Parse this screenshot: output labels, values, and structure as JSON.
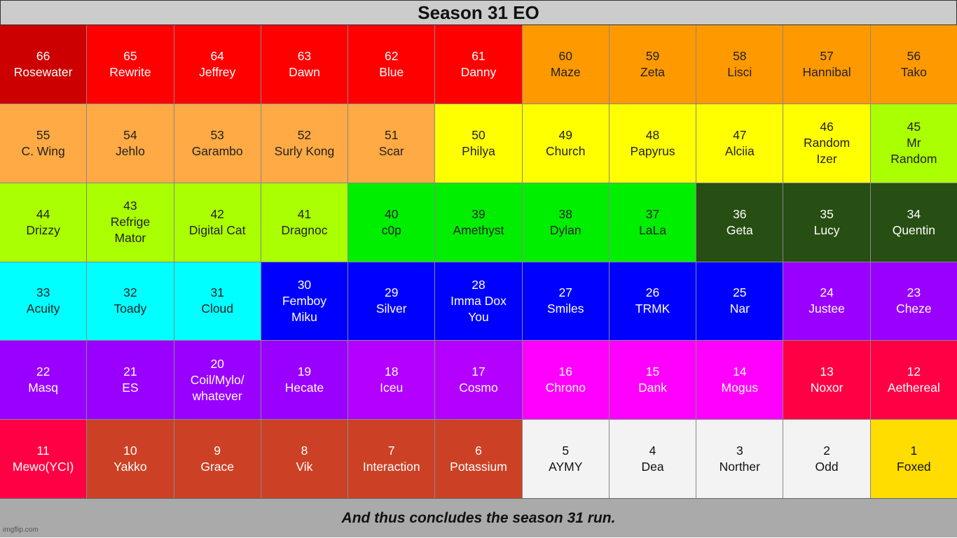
{
  "title": "Season 31 EO",
  "footer": "And thus concludes the season 31 run.",
  "watermark": "imgflip.com",
  "colors": {
    "dark_red": "#cc0000",
    "red": "#ff0000",
    "orange": "#ff9900",
    "light_orange": "#ffaa44",
    "yellow": "#ffff00",
    "lime": "#aaff00",
    "green": "#00ee00",
    "dark_green": "#274e13",
    "cyan": "#00ffff",
    "blue": "#0000ff",
    "purple": "#9900ff",
    "violet": "#b300ff",
    "magenta": "#ff00ff",
    "crimson": "#ff0044",
    "brick": "#cc4125",
    "white": "#f3f3f3",
    "gold": "#ffdd00"
  },
  "cells": [
    {
      "rank": "66",
      "name": "Rosewater",
      "bg": "#cc0000",
      "fg": "#ffffff"
    },
    {
      "rank": "65",
      "name": "Rewrite",
      "bg": "#ff0000",
      "fg": "#ffffff"
    },
    {
      "rank": "64",
      "name": "Jeffrey",
      "bg": "#ff0000",
      "fg": "#ffffff"
    },
    {
      "rank": "63",
      "name": "Dawn",
      "bg": "#ff0000",
      "fg": "#ffffff"
    },
    {
      "rank": "62",
      "name": "Blue",
      "bg": "#ff0000",
      "fg": "#ffffff"
    },
    {
      "rank": "61",
      "name": "Danny",
      "bg": "#ff0000",
      "fg": "#ffffff"
    },
    {
      "rank": "60",
      "name": "Maze",
      "bg": "#ff9900",
      "fg": "#222222"
    },
    {
      "rank": "59",
      "name": "Zeta",
      "bg": "#ff9900",
      "fg": "#222222"
    },
    {
      "rank": "58",
      "name": "Lisci",
      "bg": "#ff9900",
      "fg": "#222222"
    },
    {
      "rank": "57",
      "name": "Hannibal",
      "bg": "#ff9900",
      "fg": "#222222"
    },
    {
      "rank": "56",
      "name": "Tako",
      "bg": "#ff9900",
      "fg": "#222222"
    },
    {
      "rank": "55",
      "name": "C. Wing",
      "bg": "#ffaa44",
      "fg": "#222222"
    },
    {
      "rank": "54",
      "name": "Jehlo",
      "bg": "#ffaa44",
      "fg": "#222222"
    },
    {
      "rank": "53",
      "name": "Garambo",
      "bg": "#ffaa44",
      "fg": "#222222"
    },
    {
      "rank": "52",
      "name": "Surly Kong",
      "bg": "#ffaa44",
      "fg": "#222222"
    },
    {
      "rank": "51",
      "name": "Scar",
      "bg": "#ffaa44",
      "fg": "#222222"
    },
    {
      "rank": "50",
      "name": "Philya",
      "bg": "#ffff00",
      "fg": "#222222"
    },
    {
      "rank": "49",
      "name": "Church",
      "bg": "#ffff00",
      "fg": "#222222"
    },
    {
      "rank": "48",
      "name": "Papyrus",
      "bg": "#ffff00",
      "fg": "#222222"
    },
    {
      "rank": "47",
      "name": "Alciia",
      "bg": "#ffff00",
      "fg": "#222222"
    },
    {
      "rank": "46",
      "name": "Random\nIzer",
      "bg": "#ffff00",
      "fg": "#222222"
    },
    {
      "rank": "45",
      "name": "Mr\nRandom",
      "bg": "#aaff00",
      "fg": "#222222"
    },
    {
      "rank": "44",
      "name": "Drizzy",
      "bg": "#aaff00",
      "fg": "#222222"
    },
    {
      "rank": "43",
      "name": "Refrige\nMator",
      "bg": "#aaff00",
      "fg": "#222222"
    },
    {
      "rank": "42",
      "name": "Digital Cat",
      "bg": "#aaff00",
      "fg": "#222222"
    },
    {
      "rank": "41",
      "name": "Dragnoc",
      "bg": "#aaff00",
      "fg": "#222222"
    },
    {
      "rank": "40",
      "name": "c0p",
      "bg": "#00ee00",
      "fg": "#222222"
    },
    {
      "rank": "39",
      "name": "Amethyst",
      "bg": "#00ee00",
      "fg": "#222222"
    },
    {
      "rank": "38",
      "name": "Dylan",
      "bg": "#00ee00",
      "fg": "#222222"
    },
    {
      "rank": "37",
      "name": "LaLa",
      "bg": "#00ee00",
      "fg": "#222222"
    },
    {
      "rank": "36",
      "name": "Geta",
      "bg": "#274e13",
      "fg": "#ffffff"
    },
    {
      "rank": "35",
      "name": "Lucy",
      "bg": "#274e13",
      "fg": "#ffffff"
    },
    {
      "rank": "34",
      "name": "Quentin",
      "bg": "#274e13",
      "fg": "#ffffff"
    },
    {
      "rank": "33",
      "name": "Acuity",
      "bg": "#00ffff",
      "fg": "#222222"
    },
    {
      "rank": "32",
      "name": "Toady",
      "bg": "#00ffff",
      "fg": "#222222"
    },
    {
      "rank": "31",
      "name": "Cloud",
      "bg": "#00ffff",
      "fg": "#222222"
    },
    {
      "rank": "30",
      "name": "Femboy\nMiku",
      "bg": "#0000ff",
      "fg": "#ffffff"
    },
    {
      "rank": "29",
      "name": "Silver",
      "bg": "#0000ff",
      "fg": "#ffffff"
    },
    {
      "rank": "28",
      "name": "Imma Dox\nYou",
      "bg": "#0000ff",
      "fg": "#ffffff"
    },
    {
      "rank": "27",
      "name": "Smiles",
      "bg": "#0000ff",
      "fg": "#ffffff"
    },
    {
      "rank": "26",
      "name": "TRMK",
      "bg": "#0000ff",
      "fg": "#ffffff"
    },
    {
      "rank": "25",
      "name": "Nar",
      "bg": "#0000ff",
      "fg": "#ffffff"
    },
    {
      "rank": "24",
      "name": "Justee",
      "bg": "#9900ff",
      "fg": "#ffffff"
    },
    {
      "rank": "23",
      "name": "Cheze",
      "bg": "#9900ff",
      "fg": "#ffffff"
    },
    {
      "rank": "22",
      "name": "Masq",
      "bg": "#9900ff",
      "fg": "#ffffff"
    },
    {
      "rank": "21",
      "name": "ES",
      "bg": "#9900ff",
      "fg": "#ffffff"
    },
    {
      "rank": "20",
      "name": "Coil/Mylo/\nwhatever",
      "bg": "#9900ff",
      "fg": "#ffffff"
    },
    {
      "rank": "19",
      "name": "Hecate",
      "bg": "#9900ff",
      "fg": "#ffffff"
    },
    {
      "rank": "18",
      "name": "Iceu",
      "bg": "#b300ff",
      "fg": "#ffffff"
    },
    {
      "rank": "17",
      "name": "Cosmo",
      "bg": "#b300ff",
      "fg": "#ffffff"
    },
    {
      "rank": "16",
      "name": "Chrono",
      "bg": "#ff00ff",
      "fg": "#ffffff"
    },
    {
      "rank": "15",
      "name": "Dank",
      "bg": "#ff00ff",
      "fg": "#ffffff"
    },
    {
      "rank": "14",
      "name": "Mogus",
      "bg": "#ff00ff",
      "fg": "#ffffff"
    },
    {
      "rank": "13",
      "name": "Noxor",
      "bg": "#ff0044",
      "fg": "#ffffff"
    },
    {
      "rank": "12",
      "name": "Aethereal",
      "bg": "#ff0044",
      "fg": "#ffffff"
    },
    {
      "rank": "11",
      "name": "Mewo(YCI)",
      "bg": "#ff0044",
      "fg": "#ffffff"
    },
    {
      "rank": "10",
      "name": "Yakko",
      "bg": "#cc4125",
      "fg": "#ffffff"
    },
    {
      "rank": "9",
      "name": "Grace",
      "bg": "#cc4125",
      "fg": "#ffffff"
    },
    {
      "rank": "8",
      "name": "Vik",
      "bg": "#cc4125",
      "fg": "#ffffff"
    },
    {
      "rank": "7",
      "name": "Interaction",
      "bg": "#cc4125",
      "fg": "#ffffff"
    },
    {
      "rank": "6",
      "name": "Potassium",
      "bg": "#cc4125",
      "fg": "#ffffff"
    },
    {
      "rank": "5",
      "name": "AYMY",
      "bg": "#f3f3f3",
      "fg": "#111111"
    },
    {
      "rank": "4",
      "name": "Dea",
      "bg": "#f3f3f3",
      "fg": "#111111"
    },
    {
      "rank": "3",
      "name": "Norther",
      "bg": "#f3f3f3",
      "fg": "#111111"
    },
    {
      "rank": "2",
      "name": "Odd",
      "bg": "#f3f3f3",
      "fg": "#111111"
    },
    {
      "rank": "1",
      "name": "Foxed",
      "bg": "#ffdd00",
      "fg": "#111111"
    }
  ]
}
